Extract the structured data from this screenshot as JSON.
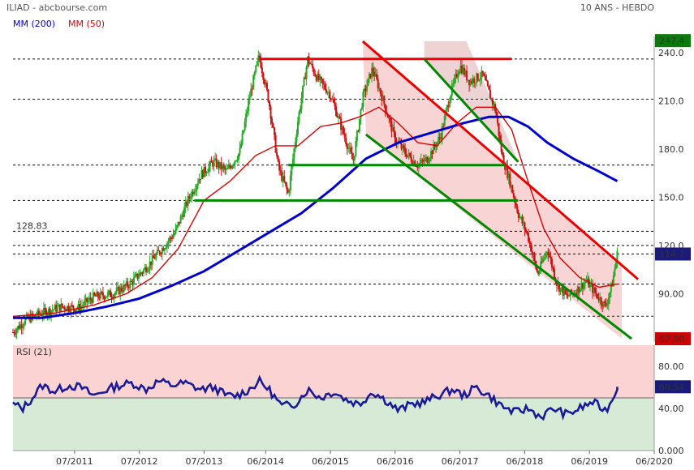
{
  "header": {
    "title": "ILIAD - abcbourse.com",
    "period": "10 ANS - HEBDO",
    "legend_ma200": "MM (200)",
    "legend_ma50": "MM (50)",
    "ma200_color": "#0000cc",
    "ma50_color": "#dd0000"
  },
  "chart_data": [
    {
      "type": "candlestick",
      "title": "ILIAD - abcbourse.com",
      "subtitle": "10 ANS - HEBDO",
      "ylim": [
        60,
        250
      ],
      "y_ticks": [
        240,
        210,
        180,
        150,
        120,
        90
      ],
      "y_tick_labels": [
        "240.0",
        "210.0",
        "180.0",
        "150.0",
        "120.0",
        "90.00"
      ],
      "x_tick_labels": [
        "07/2011",
        "07/2012",
        "07/2013",
        "06/2014",
        "06/2015",
        "06/2016",
        "06/2017",
        "06/2018",
        "06/2019",
        "06/2020"
      ],
      "x_tick_years": [
        2011.5,
        2012.5,
        2013.5,
        2014.45,
        2015.45,
        2016.45,
        2017.45,
        2018.45,
        2019.45,
        2020.45
      ],
      "x_range": [
        2010.55,
        2020.45
      ],
      "badges": [
        {
          "label": "247.4",
          "value": 247.4,
          "color": "#0a7a0a"
        },
        {
          "label": "114.7",
          "value": 114.7,
          "color": "#1a1a7a"
        },
        {
          "label": "62.00",
          "value": 62.0,
          "color": "#cc0000"
        }
      ],
      "annotation": {
        "label": "128.83",
        "value": 128.83
      },
      "support_levels": [
        236,
        211,
        170,
        148,
        128.83,
        120,
        114.7,
        96,
        76
      ],
      "price_points": [
        {
          "x": 2010.55,
          "y": 66
        },
        {
          "x": 2010.75,
          "y": 74
        },
        {
          "x": 2011.0,
          "y": 78
        },
        {
          "x": 2011.3,
          "y": 82
        },
        {
          "x": 2011.55,
          "y": 81
        },
        {
          "x": 2011.8,
          "y": 88
        },
        {
          "x": 2012.1,
          "y": 90
        },
        {
          "x": 2012.35,
          "y": 96
        },
        {
          "x": 2012.6,
          "y": 106
        },
        {
          "x": 2012.85,
          "y": 118
        },
        {
          "x": 2013.05,
          "y": 128
        },
        {
          "x": 2013.25,
          "y": 148
        },
        {
          "x": 2013.45,
          "y": 164
        },
        {
          "x": 2013.65,
          "y": 172
        },
        {
          "x": 2013.85,
          "y": 166
        },
        {
          "x": 2014.05,
          "y": 178
        },
        {
          "x": 2014.2,
          "y": 212
        },
        {
          "x": 2014.35,
          "y": 238
        },
        {
          "x": 2014.5,
          "y": 210
        },
        {
          "x": 2014.65,
          "y": 168
        },
        {
          "x": 2014.8,
          "y": 152
        },
        {
          "x": 2014.95,
          "y": 198
        },
        {
          "x": 2015.1,
          "y": 236
        },
        {
          "x": 2015.25,
          "y": 224
        },
        {
          "x": 2015.45,
          "y": 214
        },
        {
          "x": 2015.6,
          "y": 196
        },
        {
          "x": 2015.8,
          "y": 172
        },
        {
          "x": 2015.95,
          "y": 212
        },
        {
          "x": 2016.1,
          "y": 230
        },
        {
          "x": 2016.25,
          "y": 212
        },
        {
          "x": 2016.45,
          "y": 186
        },
        {
          "x": 2016.6,
          "y": 178
        },
        {
          "x": 2016.8,
          "y": 170
        },
        {
          "x": 2016.95,
          "y": 174
        },
        {
          "x": 2017.15,
          "y": 188
        },
        {
          "x": 2017.3,
          "y": 214
        },
        {
          "x": 2017.45,
          "y": 232
        },
        {
          "x": 2017.6,
          "y": 222
        },
        {
          "x": 2017.8,
          "y": 226
        },
        {
          "x": 2018.0,
          "y": 204
        },
        {
          "x": 2018.1,
          "y": 176
        },
        {
          "x": 2018.22,
          "y": 160
        },
        {
          "x": 2018.35,
          "y": 140
        },
        {
          "x": 2018.5,
          "y": 126
        },
        {
          "x": 2018.65,
          "y": 102
        },
        {
          "x": 2018.8,
          "y": 118
        },
        {
          "x": 2018.95,
          "y": 96
        },
        {
          "x": 2019.1,
          "y": 88
        },
        {
          "x": 2019.25,
          "y": 92
        },
        {
          "x": 2019.4,
          "y": 98
        },
        {
          "x": 2019.55,
          "y": 90
        },
        {
          "x": 2019.7,
          "y": 82
        },
        {
          "x": 2019.8,
          "y": 96
        },
        {
          "x": 2019.88,
          "y": 114.7
        }
      ],
      "ma50_points": [
        {
          "x": 2010.55,
          "y": 76
        },
        {
          "x": 2011.2,
          "y": 78
        },
        {
          "x": 2011.8,
          "y": 83
        },
        {
          "x": 2012.3,
          "y": 90
        },
        {
          "x": 2012.7,
          "y": 100
        },
        {
          "x": 2013.1,
          "y": 118
        },
        {
          "x": 2013.5,
          "y": 148
        },
        {
          "x": 2013.9,
          "y": 160
        },
        {
          "x": 2014.3,
          "y": 176
        },
        {
          "x": 2014.6,
          "y": 182
        },
        {
          "x": 2014.95,
          "y": 182
        },
        {
          "x": 2015.3,
          "y": 194
        },
        {
          "x": 2015.6,
          "y": 196
        },
        {
          "x": 2015.9,
          "y": 200
        },
        {
          "x": 2016.2,
          "y": 206
        },
        {
          "x": 2016.5,
          "y": 196
        },
        {
          "x": 2016.8,
          "y": 184
        },
        {
          "x": 2017.1,
          "y": 182
        },
        {
          "x": 2017.4,
          "y": 196
        },
        {
          "x": 2017.7,
          "y": 206
        },
        {
          "x": 2018.0,
          "y": 206
        },
        {
          "x": 2018.25,
          "y": 192
        },
        {
          "x": 2018.5,
          "y": 160
        },
        {
          "x": 2018.75,
          "y": 130
        },
        {
          "x": 2019.0,
          "y": 112
        },
        {
          "x": 2019.3,
          "y": 100
        },
        {
          "x": 2019.6,
          "y": 94
        },
        {
          "x": 2019.88,
          "y": 96
        }
      ],
      "ma200_points": [
        {
          "x": 2010.55,
          "y": 75
        },
        {
          "x": 2011.0,
          "y": 75
        },
        {
          "x": 2011.5,
          "y": 78
        },
        {
          "x": 2012.0,
          "y": 82
        },
        {
          "x": 2012.5,
          "y": 87
        },
        {
          "x": 2013.0,
          "y": 95
        },
        {
          "x": 2013.5,
          "y": 104
        },
        {
          "x": 2014.0,
          "y": 116
        },
        {
          "x": 2014.5,
          "y": 128
        },
        {
          "x": 2015.0,
          "y": 140
        },
        {
          "x": 2015.5,
          "y": 156
        },
        {
          "x": 2016.0,
          "y": 174
        },
        {
          "x": 2016.5,
          "y": 184
        },
        {
          "x": 2017.0,
          "y": 190
        },
        {
          "x": 2017.5,
          "y": 196
        },
        {
          "x": 2017.9,
          "y": 200
        },
        {
          "x": 2018.2,
          "y": 200
        },
        {
          "x": 2018.5,
          "y": 194
        },
        {
          "x": 2018.8,
          "y": 184
        },
        {
          "x": 2019.2,
          "y": 174
        },
        {
          "x": 2019.6,
          "y": 166
        },
        {
          "x": 2019.88,
          "y": 160
        }
      ],
      "trendlines": [
        {
          "color": "#ee0000",
          "from": {
            "x": 2014.35,
            "y": 236
          },
          "to": {
            "x": 2018.25,
            "y": 236
          }
        },
        {
          "color": "#ee0000",
          "from": {
            "x": 2015.95,
            "y": 247
          },
          "to": {
            "x": 2020.2,
            "y": 99
          }
        },
        {
          "color": "#008800",
          "from": {
            "x": 2014.8,
            "y": 170
          },
          "to": {
            "x": 2018.15,
            "y": 170
          }
        },
        {
          "color": "#008800",
          "from": {
            "x": 2013.35,
            "y": 148
          },
          "to": {
            "x": 2018.35,
            "y": 148
          }
        },
        {
          "color": "#008800",
          "from": {
            "x": 2016.9,
            "y": 236
          },
          "to": {
            "x": 2018.35,
            "y": 172
          }
        },
        {
          "color": "#008800",
          "from": {
            "x": 2016.0,
            "y": 189
          },
          "to": {
            "x": 2020.1,
            "y": 62
          }
        }
      ]
    },
    {
      "type": "line",
      "title": "RSI (21)",
      "ylim": [
        0,
        100
      ],
      "y_ticks": [
        80,
        40,
        0
      ],
      "y_tick_labels": [
        "80.00",
        "40.00",
        "0.000"
      ],
      "midline": 50,
      "badge": {
        "label": "60.54",
        "value": 60.54,
        "color": "#1a1a7a"
      },
      "series_color": "#1a1a99",
      "points": [
        {
          "x": 2010.55,
          "y": 44
        },
        {
          "x": 2010.7,
          "y": 40
        },
        {
          "x": 2010.85,
          "y": 50
        },
        {
          "x": 2011.0,
          "y": 62
        },
        {
          "x": 2011.2,
          "y": 56
        },
        {
          "x": 2011.4,
          "y": 62
        },
        {
          "x": 2011.6,
          "y": 60
        },
        {
          "x": 2011.8,
          "y": 52
        },
        {
          "x": 2012.0,
          "y": 58
        },
        {
          "x": 2012.2,
          "y": 62
        },
        {
          "x": 2012.4,
          "y": 64
        },
        {
          "x": 2012.6,
          "y": 58
        },
        {
          "x": 2012.8,
          "y": 66
        },
        {
          "x": 2013.0,
          "y": 62
        },
        {
          "x": 2013.2,
          "y": 64
        },
        {
          "x": 2013.45,
          "y": 58
        },
        {
          "x": 2013.65,
          "y": 60
        },
        {
          "x": 2013.85,
          "y": 52
        },
        {
          "x": 2014.0,
          "y": 52
        },
        {
          "x": 2014.2,
          "y": 58
        },
        {
          "x": 2014.35,
          "y": 66
        },
        {
          "x": 2014.5,
          "y": 58
        },
        {
          "x": 2014.7,
          "y": 42
        },
        {
          "x": 2014.9,
          "y": 44
        },
        {
          "x": 2015.1,
          "y": 58
        },
        {
          "x": 2015.3,
          "y": 50
        },
        {
          "x": 2015.5,
          "y": 56
        },
        {
          "x": 2015.7,
          "y": 48
        },
        {
          "x": 2015.9,
          "y": 44
        },
        {
          "x": 2016.1,
          "y": 56
        },
        {
          "x": 2016.3,
          "y": 48
        },
        {
          "x": 2016.5,
          "y": 38
        },
        {
          "x": 2016.7,
          "y": 44
        },
        {
          "x": 2016.9,
          "y": 46
        },
        {
          "x": 2017.1,
          "y": 52
        },
        {
          "x": 2017.35,
          "y": 58
        },
        {
          "x": 2017.5,
          "y": 52
        },
        {
          "x": 2017.7,
          "y": 60
        },
        {
          "x": 2017.9,
          "y": 52
        },
        {
          "x": 2018.1,
          "y": 42
        },
        {
          "x": 2018.3,
          "y": 36
        },
        {
          "x": 2018.5,
          "y": 40
        },
        {
          "x": 2018.7,
          "y": 32
        },
        {
          "x": 2018.9,
          "y": 40
        },
        {
          "x": 2019.1,
          "y": 34
        },
        {
          "x": 2019.3,
          "y": 40
        },
        {
          "x": 2019.5,
          "y": 46
        },
        {
          "x": 2019.7,
          "y": 38
        },
        {
          "x": 2019.8,
          "y": 48
        },
        {
          "x": 2019.88,
          "y": 60.54
        }
      ]
    }
  ]
}
